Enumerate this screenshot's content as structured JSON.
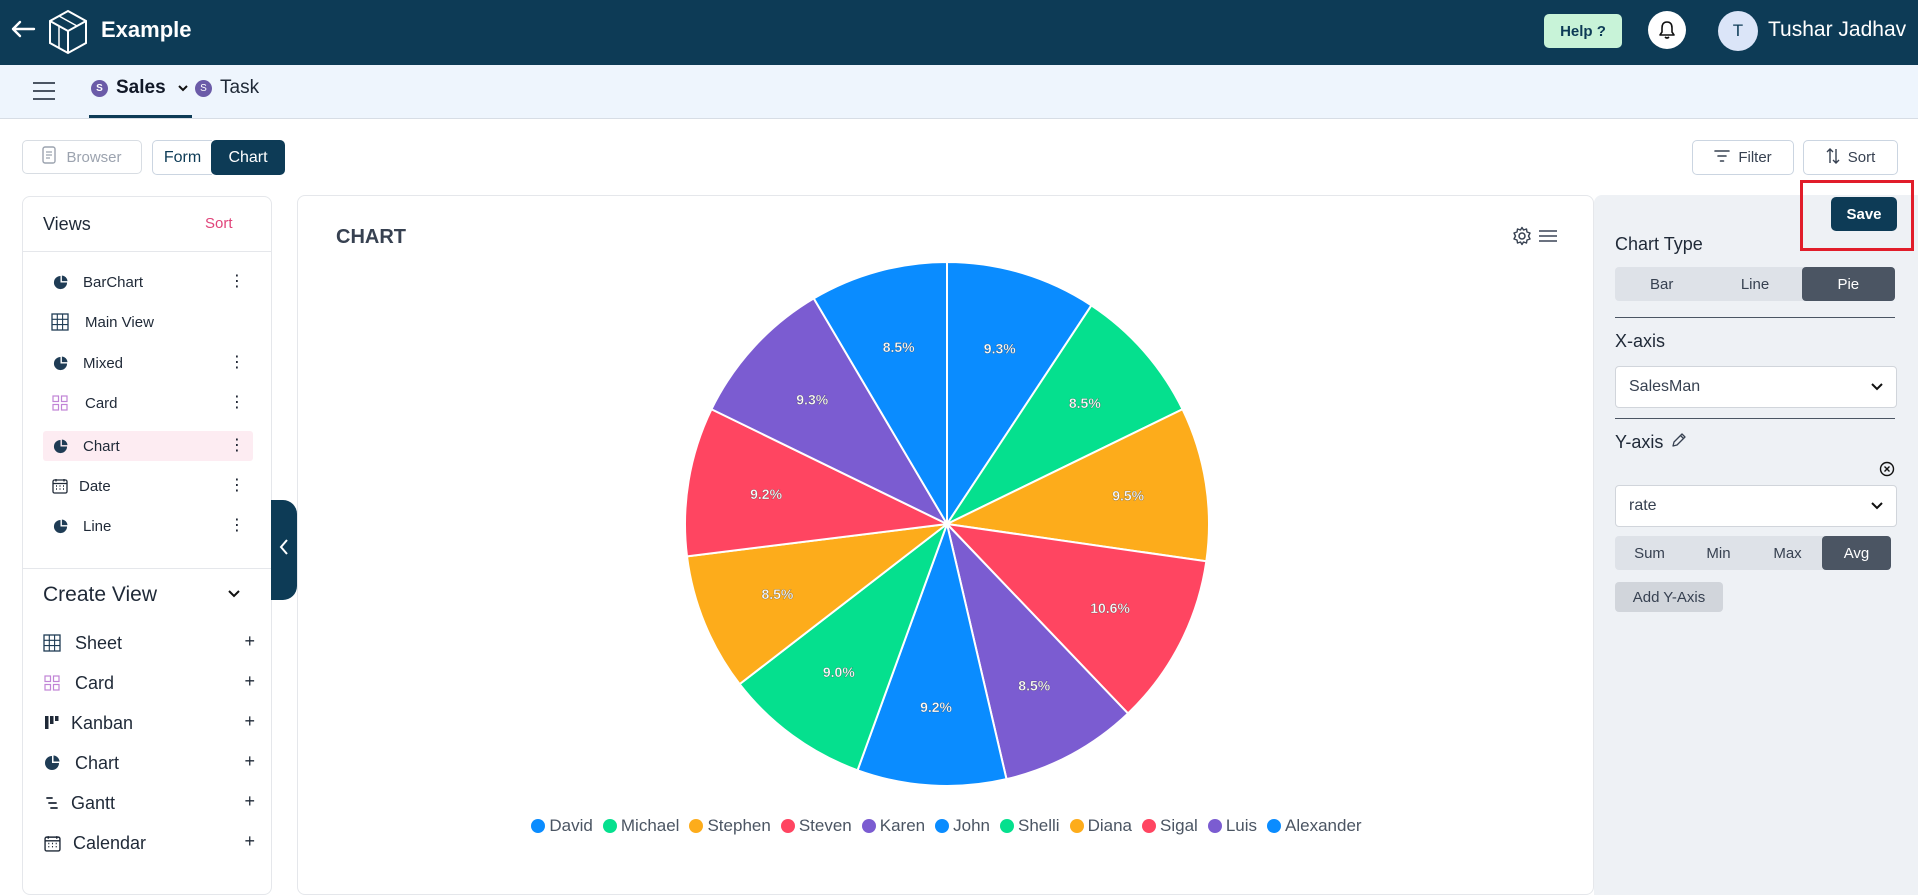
{
  "header": {
    "app_title": "Example",
    "help_label": "Help ?",
    "user_initial": "T",
    "user_name": "Tushar Jadhav"
  },
  "tabs": [
    {
      "badge": "S",
      "label": "Sales",
      "active": true
    },
    {
      "badge": "S",
      "label": "Task",
      "active": false
    }
  ],
  "toolbar": {
    "browser_label": "Browser",
    "form_label": "Form",
    "chart_label": "Chart",
    "filter_label": "Filter",
    "sort_label": "Sort"
  },
  "views": {
    "title": "Views",
    "sort_label": "Sort",
    "items": [
      {
        "label": "BarChart",
        "icon": "pie-chart-icon",
        "menu": true
      },
      {
        "label": "Main View",
        "icon": "grid-icon",
        "menu": false
      },
      {
        "label": "Mixed",
        "icon": "pie-chart-icon",
        "menu": true
      },
      {
        "label": "Card",
        "icon": "card-icon",
        "menu": true
      },
      {
        "label": "Chart",
        "icon": "pie-chart-icon",
        "menu": true,
        "active": true
      },
      {
        "label": "Date",
        "icon": "calendar-icon",
        "menu": true
      },
      {
        "label": "Line",
        "icon": "pie-chart-icon",
        "menu": true
      }
    ]
  },
  "create_view": {
    "title": "Create View",
    "items": [
      {
        "label": "Sheet",
        "icon": "grid-icon"
      },
      {
        "label": "Card",
        "icon": "card-icon"
      },
      {
        "label": "Kanban",
        "icon": "kanban-icon"
      },
      {
        "label": "Chart",
        "icon": "pie-chart-icon"
      },
      {
        "label": "Gantt",
        "icon": "gantt-icon"
      },
      {
        "label": "Calendar",
        "icon": "calendar-icon"
      }
    ]
  },
  "chart_panel": {
    "title": "CHART"
  },
  "chart_data": {
    "type": "pie",
    "categories": [
      "David",
      "Michael",
      "Stephen",
      "Steven",
      "Karen",
      "John",
      "Shelli",
      "Diana",
      "Sigal",
      "Luis",
      "Alexander"
    ],
    "values": [
      9.3,
      8.5,
      9.5,
      10.6,
      8.5,
      9.2,
      9.0,
      8.5,
      9.2,
      9.3,
      8.5
    ],
    "labels": [
      "9.3%",
      "8.5%",
      "9.5%",
      "10.6%",
      "8.5%",
      "9.2%",
      "9.0%",
      "8.5%",
      "9.2%",
      "9.3%",
      "8.5%"
    ],
    "colors": [
      "#0a8cff",
      "#05e08e",
      "#fdac1b",
      "#ff4561",
      "#7b5cd1",
      "#0a8cff",
      "#05e08e",
      "#fdac1b",
      "#ff4561",
      "#7b5cd1",
      "#0a8cff"
    ],
    "legend_position": "bottom"
  },
  "settings": {
    "save_label": "Save",
    "chart_type_label": "Chart Type",
    "chart_types": [
      "Bar",
      "Line",
      "Pie"
    ],
    "selected_chart_type": "Pie",
    "x_axis_label": "X-axis",
    "x_axis_value": "SalesMan",
    "y_axis_label": "Y-axis",
    "y_axis_value": "rate",
    "aggregations": [
      "Sum",
      "Min",
      "Max",
      "Avg"
    ],
    "selected_aggregation": "Avg",
    "add_y_axis_label": "Add Y-Axis"
  }
}
